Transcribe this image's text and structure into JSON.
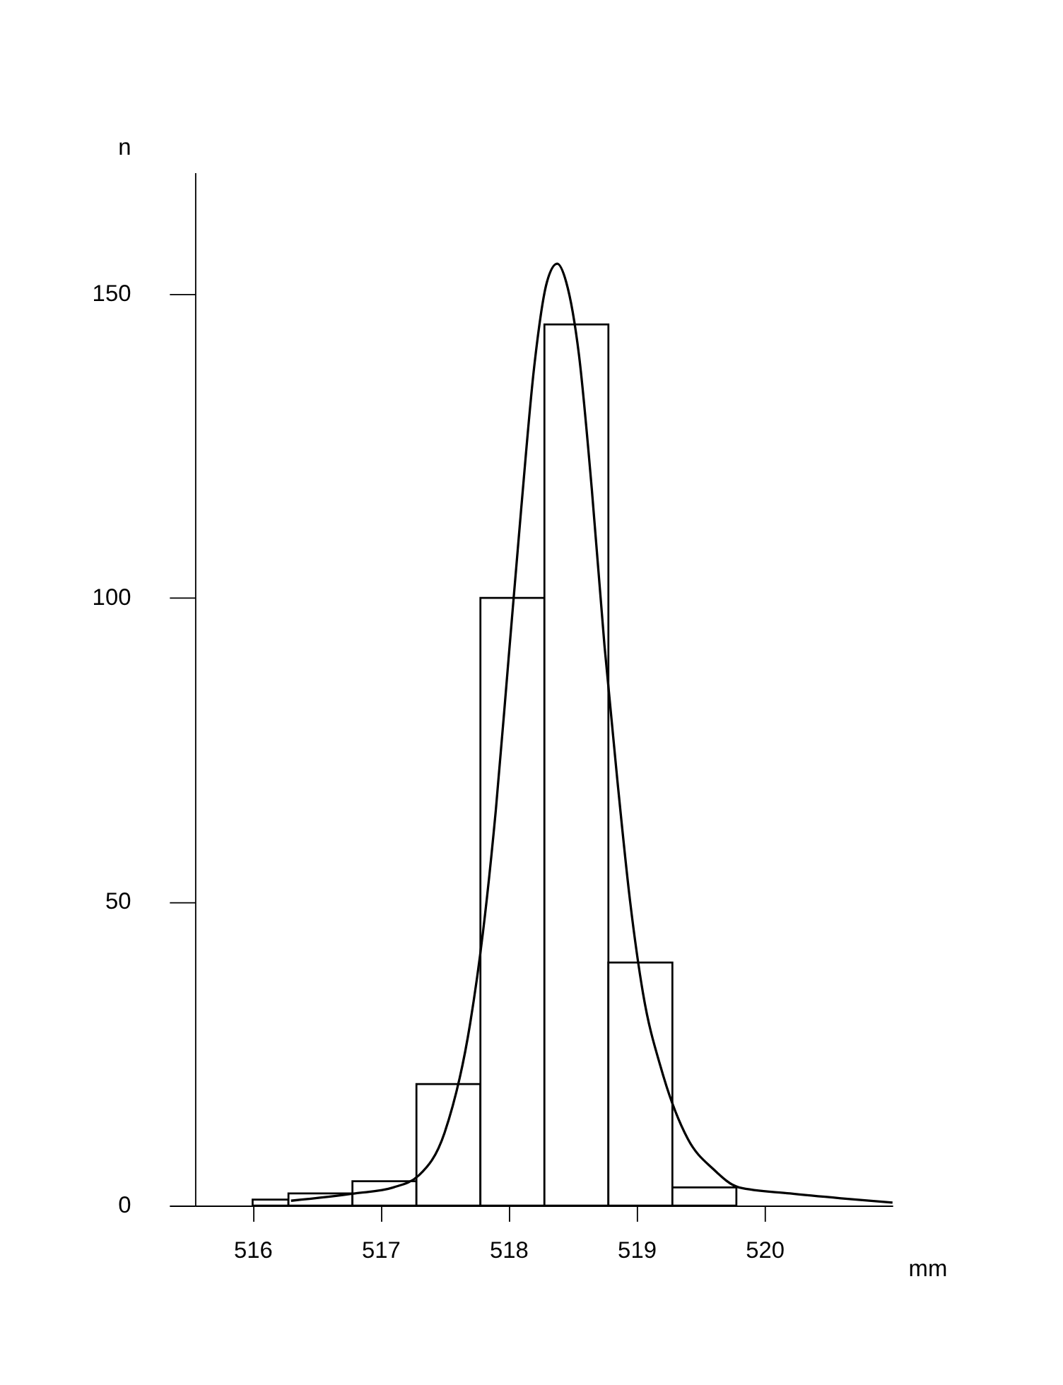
{
  "chart_data": {
    "type": "histogram",
    "xlabel": "mm",
    "ylabel": "n",
    "xlim": [
      515.55,
      521.0
    ],
    "xticks": [
      516,
      517,
      518,
      519,
      520
    ],
    "ylim": [
      0,
      170
    ],
    "yticks": [
      0,
      50,
      100,
      150
    ],
    "grid": false,
    "series": [
      {
        "color": "#000000",
        "bins": [
          516.0,
          516.28,
          516.78,
          517.28,
          517.78,
          518.28,
          518.78,
          519.28,
          519.78
        ],
        "values": [
          1,
          2,
          4,
          20,
          100,
          145,
          40,
          3
        ]
      },
      {
        "type": "line",
        "color": "#000000",
        "x": [
          516.3,
          516.8,
          517.1,
          517.3,
          517.5,
          517.7,
          517.8,
          517.9,
          518.0,
          518.1,
          518.2,
          518.3,
          518.38,
          518.45,
          518.55,
          518.65,
          518.75,
          518.85,
          518.95,
          519.05,
          519.2,
          519.4,
          519.6,
          519.8,
          520.2,
          520.6,
          521.0
        ],
        "values": [
          0.8,
          2,
          3,
          5,
          12,
          30,
          45,
          65,
          90,
          115,
          138,
          152,
          155,
          152,
          140,
          118,
          92,
          70,
          50,
          35,
          22,
          11,
          6,
          3,
          2,
          1.2,
          0.5
        ]
      }
    ]
  }
}
